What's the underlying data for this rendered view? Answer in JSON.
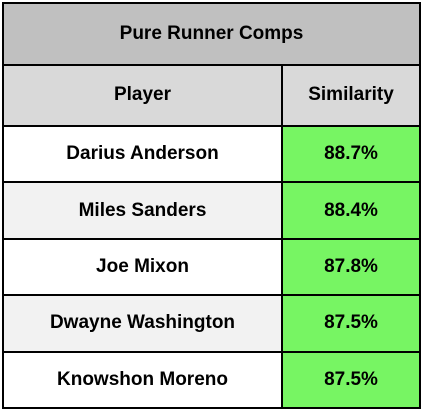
{
  "table": {
    "title": "Pure Runner Comps",
    "columns": [
      "Player",
      "Similarity"
    ],
    "rows": [
      {
        "player": "Darius Anderson",
        "similarity": "88.7%"
      },
      {
        "player": "Miles Sanders",
        "similarity": "88.4%"
      },
      {
        "player": "Joe Mixon",
        "similarity": "87.8%"
      },
      {
        "player": "Dwayne Washington",
        "similarity": "87.5%"
      },
      {
        "player": "Knowshon Moreno",
        "similarity": "87.5%"
      }
    ]
  },
  "colors": {
    "title_bg": "#c0c0c0",
    "header_bg": "#d9d9d9",
    "similarity_bg": "#77f563",
    "alt_row_bg": "#f2f2f2"
  }
}
